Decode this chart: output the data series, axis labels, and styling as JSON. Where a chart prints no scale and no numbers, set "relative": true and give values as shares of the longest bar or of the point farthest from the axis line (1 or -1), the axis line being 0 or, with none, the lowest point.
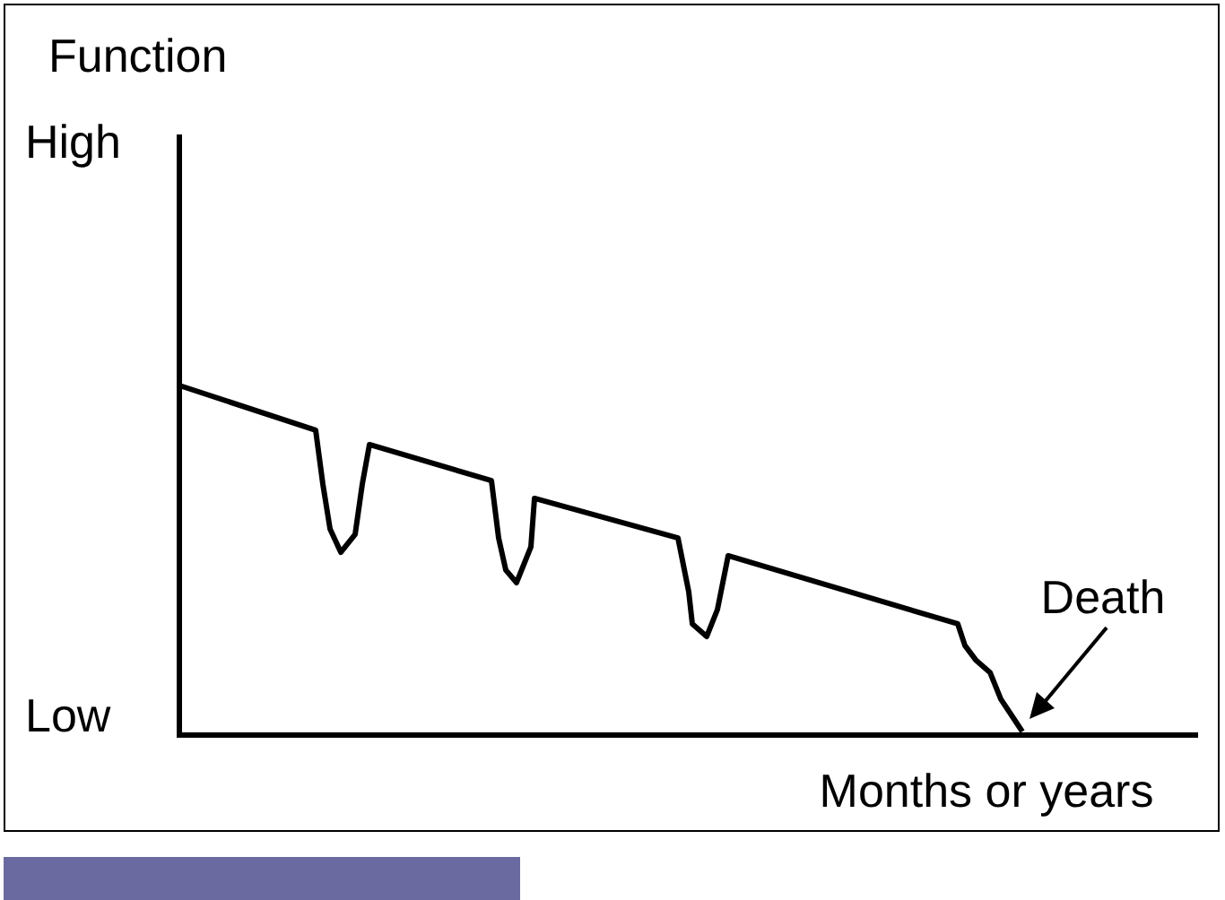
{
  "chart_data": {
    "type": "line",
    "relative": true,
    "xlabel": "Months or years",
    "color": "#000000",
    "marker": "none",
    "line_style": "solid",
    "legend": false,
    "annotations": [
      "Function",
      "High",
      "Low",
      "Death"
    ],
    "categories": [
      null,
      null,
      null,
      null,
      null,
      null,
      null,
      null,
      null,
      null,
      null,
      null,
      null,
      null,
      null,
      null,
      null,
      null,
      null,
      null,
      null,
      null,
      null,
      null,
      null,
      null,
      null,
      null,
      null,
      null,
      null,
      null,
      null,
      null,
      null,
      null,
      null,
      null,
      null,
      null,
      null,
      null,
      null,
      null,
      null,
      null,
      null,
      null,
      null,
      null,
      null,
      null,
      null,
      null,
      null,
      null,
      null,
      null,
      null,
      null,
      null,
      null,
      null,
      null,
      null,
      null,
      null,
      null,
      null,
      null,
      null,
      null,
      null,
      null,
      null,
      null,
      null,
      null,
      null,
      null,
      null,
      null,
      null,
      null,
      null,
      null,
      null,
      null,
      null,
      null,
      null,
      null,
      null,
      null,
      null,
      null,
      null,
      null,
      null,
      null,
      null,
      null,
      null,
      null,
      null,
      null,
      null,
      null,
      null,
      null,
      null,
      null,
      null,
      null,
      null,
      null,
      null,
      null,
      null,
      null,
      null,
      null,
      null,
      null,
      null,
      null,
      null,
      null,
      null,
      null,
      null,
      null,
      null,
      null,
      null,
      null,
      null,
      null,
      null,
      null,
      null,
      null,
      null,
      null,
      null,
      null,
      null,
      null,
      null,
      null,
      null,
      null,
      null,
      null,
      null,
      null,
      null,
      null,
      null,
      null,
      null,
      null,
      null,
      null,
      null,
      null,
      null,
      null,
      null,
      null,
      null,
      null,
      null,
      null,
      null,
      null,
      null,
      null,
      null,
      null,
      null,
      null,
      null,
      null,
      null,
      null,
      null,
      null,
      null,
      null,
      null,
      null,
      null,
      null,
      null,
      null,
      null,
      null,
      null,
      null,
      null,
      null,
      null,
      null,
      null,
      null,
      null,
      null,
      null,
      null,
      null,
      null,
      null,
      null,
      null,
      null,
      null,
      null,
      null,
      null,
      null,
      null,
      null,
      null,
      null,
      null,
      null,
      null,
      null,
      null,
      null,
      null,
      null,
      null,
      null,
      null,
      null,
      null,
      null,
      null,
      null,
      null,
      null,
      null,
      null,
      null,
      null,
      null,
      null,
      null,
      null,
      null,
      null,
      null,
      null,
      null,
      null,
      null,
      null,
      null,
      null,
      null,
      null,
      null,
      null,
      null,
      null,
      null,
      null,
      null,
      null,
      null,
      null,
      null,
      null,
      null,
      null,
      null,
      null,
      null,
      null,
      null,
      null,
      null,
      null
    ],
    "values": [
      1,
      null,
      null,
      null,
      null,
      null,
      null,
      null,
      null,
      null,
      null,
      null,
      null,
      null,
      null,
      null,
      null,
      null,
      null,
      null,
      null,
      null,
      null,
      null,
      null,
      null,
      null,
      null,
      null,
      null,
      null,
      null,
      null,
      null,
      null,
      null,
      null,
      null,
      0.872,
      null,
      0.718,
      null,
      0.59,
      null,
      null,
      0.523,
      null,
      null,
      null,
      0.574,
      null,
      0.718,
      null,
      0.831,
      null,
      null,
      null,
      null,
      null,
      null,
      null,
      null,
      null,
      null,
      null,
      null,
      null,
      null,
      null,
      null,
      null,
      null,
      null,
      null,
      null,
      null,
      null,
      null,
      null,
      null,
      null,
      null,
      null,
      null,
      null,
      null,
      null,
      0.728,
      null,
      0.564,
      null,
      0.472,
      null,
      null,
      0.436,
      null,
      null,
      null,
      0.538,
      0.677,
      null,
      null,
      null,
      null,
      null,
      null,
      null,
      null,
      null,
      null,
      null,
      null,
      null,
      null,
      null,
      null,
      null,
      null,
      null,
      null,
      null,
      null,
      null,
      null,
      null,
      null,
      null,
      null,
      null,
      null,
      null,
      null,
      null,
      null,
      null,
      null,
      null,
      null,
      null,
      0.564,
      null,
      null,
      0.41,
      0.318,
      null,
      null,
      null,
      0.282,
      null,
      null,
      0.359,
      null,
      null,
      0.513,
      null,
      null,
      null,
      null,
      null,
      null,
      null,
      null,
      null,
      null,
      null,
      null,
      null,
      null,
      null,
      null,
      null,
      null,
      null,
      null,
      null,
      null,
      null,
      null,
      null,
      null,
      null,
      null,
      null,
      null,
      null,
      null,
      null,
      null,
      null,
      null,
      null,
      null,
      null,
      null,
      null,
      null,
      null,
      null,
      null,
      null,
      null,
      null,
      null,
      null,
      null,
      null,
      null,
      null,
      null,
      null,
      null,
      null,
      null,
      null,
      null,
      null,
      null,
      0.318,
      null,
      0.256,
      null,
      null,
      0.215,
      null,
      null,
      null,
      0.179,
      null,
      null,
      0.103,
      null,
      null,
      null,
      0.041,
      null,
      0.01,
      null,
      null,
      null,
      null,
      null,
      null,
      null,
      null,
      null,
      null,
      null,
      null,
      null,
      null,
      null,
      null,
      null,
      null,
      null,
      null,
      null,
      null,
      null,
      null,
      null,
      null,
      null,
      null,
      null,
      null,
      null,
      null,
      null,
      null,
      null,
      null,
      null,
      null,
      null,
      null,
      null,
      null,
      null,
      null,
      null,
      null,
      null,
      null,
      null
    ]
  }
}
